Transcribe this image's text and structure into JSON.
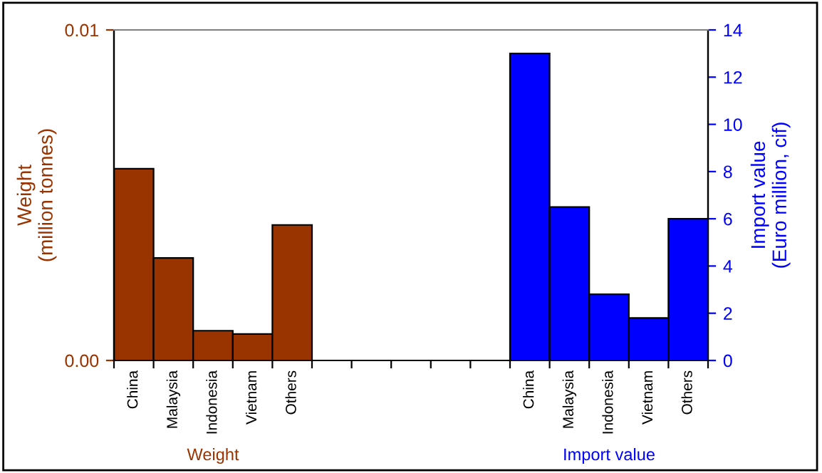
{
  "chart_data": {
    "type": "bar",
    "categories": [
      "China",
      "Malaysia",
      "Indonesia",
      "Vietnam",
      "Others",
      null,
      null,
      null,
      null,
      null,
      "China",
      "Malaysia",
      "Indonesia",
      "Vietnam",
      "Others"
    ],
    "series": [
      {
        "name": "Weight",
        "color": "#993300",
        "values": [
          0.0058,
          0.0031,
          0.0009,
          0.0008,
          0.0041,
          null,
          null,
          null,
          null,
          null,
          null,
          null,
          null,
          null,
          null
        ]
      },
      {
        "name": "Import value",
        "color": "#0000ff",
        "axis": "y2",
        "values": [
          null,
          null,
          null,
          null,
          null,
          null,
          null,
          null,
          null,
          null,
          13.0,
          6.5,
          2.8,
          1.8,
          6.0
        ]
      }
    ],
    "ylabel": "Weight\n(million tonnes)",
    "y2label": "Import value\n(Euro million, cif)",
    "ylim": [
      0,
      0.01
    ],
    "yticks": [
      {
        "value": 0,
        "label": "0.00"
      },
      {
        "value": 0.01,
        "label": "0.01"
      }
    ],
    "y2lim": [
      0,
      14
    ],
    "y2ticks": [
      0,
      2,
      4,
      6,
      8,
      10,
      12,
      14
    ],
    "grid": false,
    "legend": false
  }
}
